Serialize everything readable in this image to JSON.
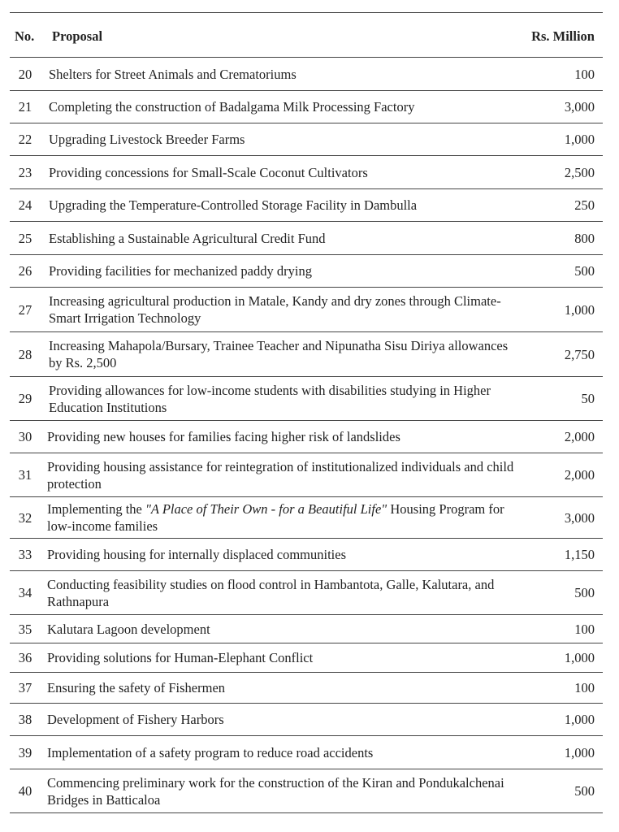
{
  "table": {
    "header": [
      "No.",
      "Proposal",
      "Rs. Million"
    ],
    "rows": [
      {
        "no": "20",
        "proposal": "Shelters for Street Animals and Crematoriums",
        "amount": "100"
      },
      {
        "no": "21",
        "proposal": "Completing the construction of Badalgama Milk Processing Factory",
        "amount": "3,000"
      },
      {
        "no": "22",
        "proposal": "Upgrading Livestock Breeder Farms",
        "amount": "1,000"
      },
      {
        "no": "23",
        "proposal": "Providing concessions for Small-Scale Coconut Cultivators",
        "amount": "2,500"
      },
      {
        "no": "24",
        "proposal": "Upgrading the Temperature-Controlled Storage Facility in Dambulla",
        "amount": "250"
      },
      {
        "no": "25",
        "proposal": "Establishing a Sustainable Agricultural Credit Fund",
        "amount": "800"
      },
      {
        "no": "26",
        "proposal": "Providing facilities for mechanized paddy drying",
        "amount": "500"
      },
      {
        "no": "27",
        "proposal": "Increasing agricultural production in Matale, Kandy and dry zones through Climate-Smart Irrigation Technology",
        "amount": "1,000"
      },
      {
        "no": "28",
        "proposal": "Increasing Mahapola/Bursary, Trainee Teacher and Nipunatha Sisu Diriya allowances by Rs. 2,500",
        "amount": "2,750"
      },
      {
        "no": "29",
        "proposal": "Providing allowances for low-income students with disabilities studying in Higher Education Institutions",
        "amount": "50"
      },
      {
        "no": "30",
        "proposal": "Providing new houses for families facing higher risk of landslides",
        "amount": "2,000"
      },
      {
        "no": "31",
        "proposal": "Providing housing assistance for reintegration of institutionalized individuals and child protection",
        "amount": "2,000"
      },
      {
        "no": "32",
        "proposal": [
          {
            "text": "Implementing the ",
            "italic": false
          },
          {
            "text": "\"A Place of Their Own - for a Beautiful Life\"",
            "italic": true
          },
          {
            "text": " Housing Program for low-income families",
            "italic": false
          }
        ],
        "amount": "3,000"
      },
      {
        "no": "33",
        "proposal": "Providing housing for internally displaced communities",
        "amount": "1,150"
      },
      {
        "no": "34",
        "proposal": "Conducting feasibility studies on flood control in Hambantota, Galle, Kalutara, and Rathnapura",
        "amount": "500"
      },
      {
        "no": "35",
        "proposal": "Kalutara Lagoon development",
        "amount": "100"
      },
      {
        "no": "36",
        "proposal": "Providing solutions for Human-Elephant Conflict",
        "amount": "1,000"
      },
      {
        "no": "37",
        "proposal": "Ensuring the safety of Fishermen",
        "amount": "100"
      },
      {
        "no": "38",
        "proposal": "Development of Fishery Harbors",
        "amount": "1,000"
      },
      {
        "no": "39",
        "proposal": "Implementation of a safety program to reduce road accidents",
        "amount": "1,000"
      },
      {
        "no": "40",
        "proposal": "Commencing preliminary work for the construction of the Kiran and Pondukalchenai Bridges in Batticaloa",
        "amount": "500"
      }
    ]
  }
}
